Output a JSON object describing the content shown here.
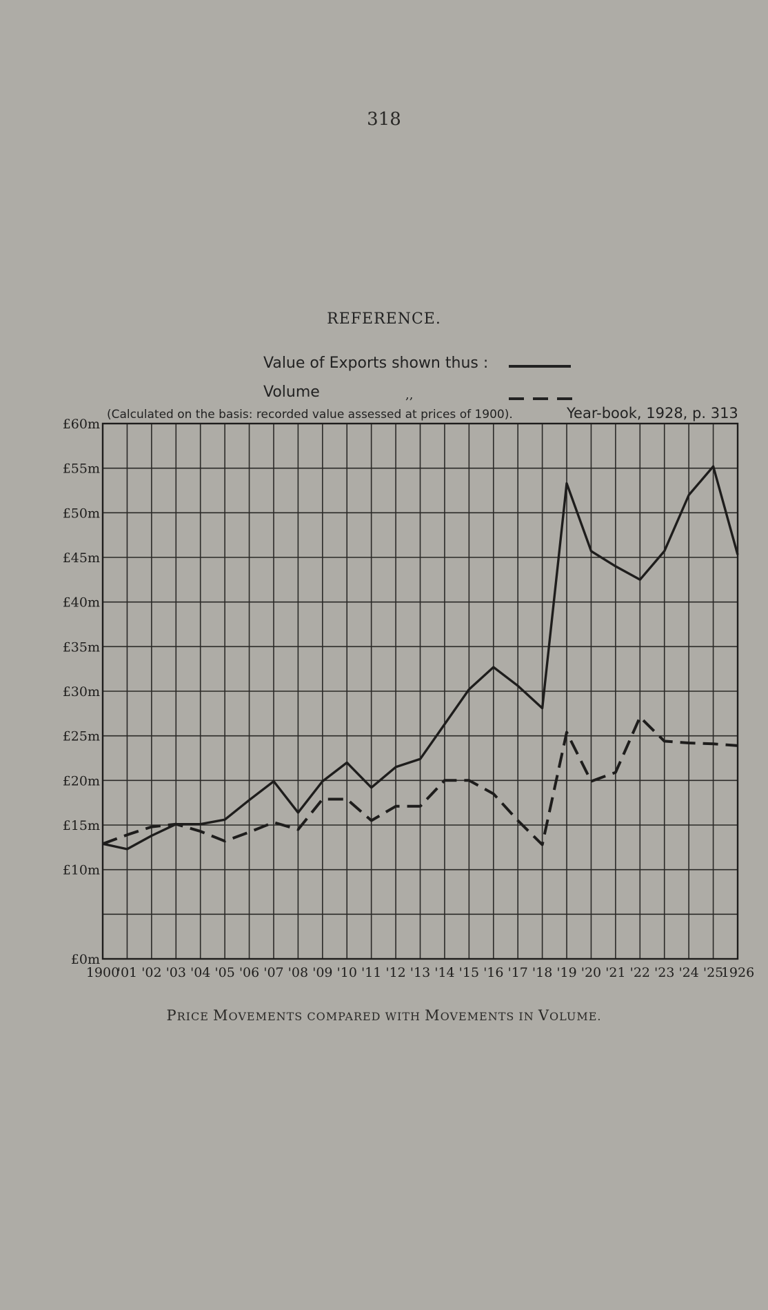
{
  "page_number": "318",
  "reference": {
    "title": "REFERENCE.",
    "value_label": "Value of Exports shown thus :",
    "volume_label": "Volume",
    "ditto_mark": ",,",
    "basis_note": "(Calculated on the basis: recorded value assessed at prices of 1900).",
    "source": "Year-book, 1928, p. 313"
  },
  "caption": {
    "parts": [
      {
        "text": "P",
        "small": false
      },
      {
        "text": "RICE ",
        "small": true
      },
      {
        "text": "M",
        "small": false
      },
      {
        "text": "OVEMENTS COMPARED WITH ",
        "small": true
      },
      {
        "text": "M",
        "small": false
      },
      {
        "text": "OVEMENTS IN ",
        "small": true
      },
      {
        "text": "V",
        "small": false
      },
      {
        "text": "OLUME.",
        "small": true
      }
    ]
  },
  "colors": {
    "paper": "#aeaca6",
    "ink": "#1e1d1c",
    "grid": "#2a2927"
  },
  "chart_data": {
    "type": "line",
    "title": "",
    "xlabel": "",
    "ylabel": "",
    "x": [
      1900,
      1901,
      1902,
      1903,
      1904,
      1905,
      1906,
      1907,
      1908,
      1909,
      1910,
      1911,
      1912,
      1913,
      1914,
      1915,
      1916,
      1917,
      1918,
      1919,
      1920,
      1921,
      1922,
      1923,
      1924,
      1925,
      1926
    ],
    "x_tick_labels": [
      "1900",
      "'01",
      "'02",
      "'03",
      "'04",
      "'05",
      "'06",
      "'07",
      "'08",
      "'09",
      "'10",
      "'11",
      "'12",
      "'13",
      "'14",
      "'15",
      "'16",
      "'17",
      "'18",
      "'19",
      "'20",
      "'21",
      "'22",
      "'23",
      "'24",
      "'25",
      "1926"
    ],
    "ylim": [
      0,
      60
    ],
    "y_ticks": [
      0,
      5,
      10,
      15,
      20,
      25,
      30,
      35,
      40,
      45,
      50,
      55,
      60
    ],
    "y_tick_labels": [
      "£0m",
      "£10m",
      "£15m",
      "£20m",
      "£25m",
      "£30m",
      "£35m",
      "£40m",
      "£45m",
      "£50m",
      "£55m",
      "£60m"
    ],
    "y_tick_values": [
      0,
      10,
      15,
      20,
      25,
      30,
      35,
      40,
      45,
      50,
      55,
      60
    ],
    "grid": true,
    "series": [
      {
        "name": "Value of Exports",
        "style": "solid",
        "values": [
          12.9,
          12.3,
          13.8,
          15.1,
          15.1,
          15.6,
          17.8,
          19.9,
          16.4,
          19.9,
          22.0,
          19.2,
          21.5,
          22.4,
          26.3,
          30.2,
          32.7,
          30.6,
          28.1,
          53.3,
          45.7,
          44.0,
          42.5,
          45.7,
          52.0,
          55.2,
          45.3
        ]
      },
      {
        "name": "Volume",
        "style": "dashed",
        "values": [
          12.9,
          13.9,
          14.8,
          15.1,
          14.3,
          13.2,
          14.2,
          15.3,
          14.5,
          17.9,
          17.9,
          15.5,
          17.1,
          17.1,
          20.0,
          20.0,
          18.5,
          15.5,
          12.8,
          25.4,
          19.9,
          20.9,
          27.1,
          24.4,
          24.2,
          24.1,
          23.9
        ]
      }
    ]
  }
}
